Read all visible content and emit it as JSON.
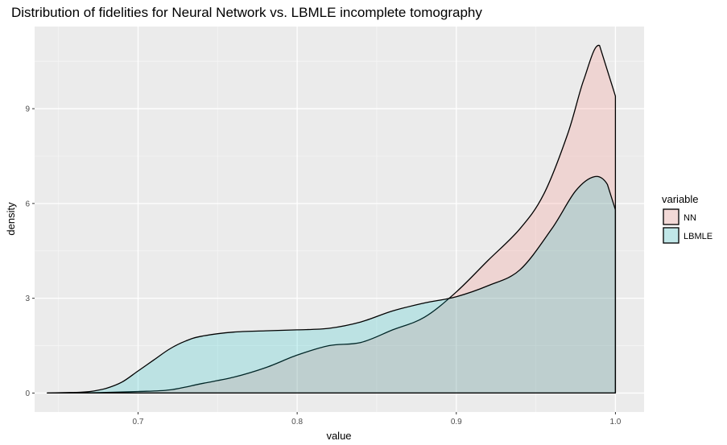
{
  "chart_data": {
    "type": "area",
    "title": "Distribution of fidelities for Neural Network vs. LBMLE incomplete tomography",
    "xlabel": "value",
    "ylabel": "density",
    "xlim": [
      0.635,
      1.018
    ],
    "ylim": [
      -0.6,
      11.6
    ],
    "xticks": [
      0.7,
      0.8,
      0.9,
      1.0
    ],
    "xtick_labels": [
      "0.7",
      "0.8",
      "0.9",
      "1.0"
    ],
    "yticks": [
      0,
      3,
      6,
      9
    ],
    "ytick_labels": [
      "0",
      "3",
      "6",
      "9"
    ],
    "grid": true,
    "legend": {
      "title": "variable",
      "position": "right"
    },
    "series": [
      {
        "name": "NN",
        "fill": "#F8766D",
        "x": [
          0.643,
          0.66,
          0.68,
          0.7,
          0.72,
          0.74,
          0.76,
          0.78,
          0.8,
          0.82,
          0.84,
          0.86,
          0.88,
          0.9,
          0.92,
          0.94,
          0.955,
          0.97,
          0.98,
          0.99,
          1.0,
          1.0
        ],
        "values": [
          0.0,
          0.0,
          0.02,
          0.05,
          0.1,
          0.3,
          0.5,
          0.8,
          1.2,
          1.5,
          1.6,
          2.0,
          2.4,
          3.2,
          4.2,
          5.2,
          6.3,
          8.2,
          9.9,
          11.0,
          9.4,
          0.0
        ]
      },
      {
        "name": "LBMLE",
        "fill": "#00BFC4",
        "x": [
          0.643,
          0.66,
          0.67,
          0.68,
          0.69,
          0.7,
          0.71,
          0.72,
          0.73,
          0.74,
          0.76,
          0.78,
          0.8,
          0.82,
          0.84,
          0.86,
          0.88,
          0.9,
          0.92,
          0.94,
          0.96,
          0.975,
          0.987,
          0.995,
          1.0,
          1.0
        ],
        "values": [
          0.0,
          0.02,
          0.05,
          0.15,
          0.35,
          0.7,
          1.05,
          1.4,
          1.65,
          1.8,
          1.93,
          1.97,
          2.0,
          2.05,
          2.25,
          2.6,
          2.85,
          3.05,
          3.4,
          3.9,
          5.2,
          6.4,
          6.85,
          6.6,
          5.8,
          0.0
        ]
      }
    ]
  }
}
